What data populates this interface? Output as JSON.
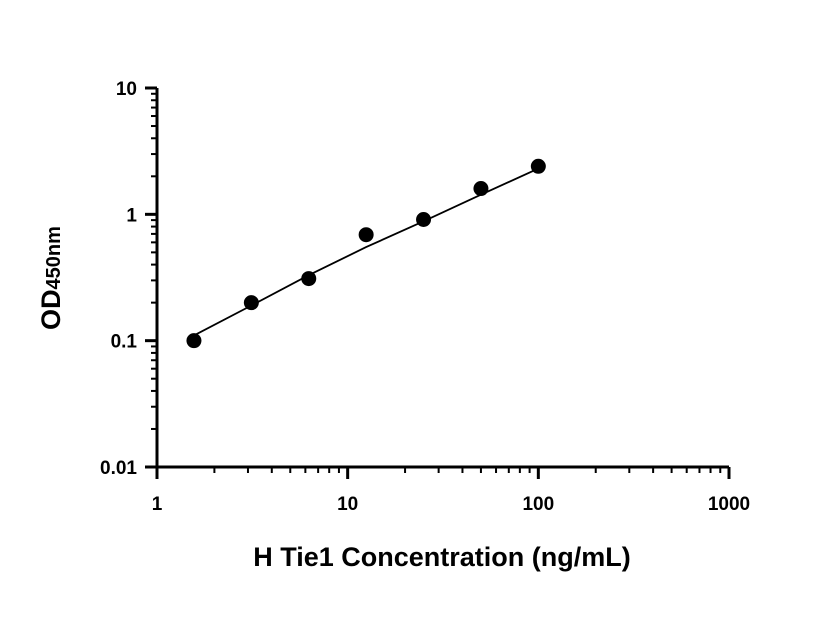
{
  "chart_data": {
    "type": "scatter",
    "title": "",
    "xlabel": "H Tie1 Concentration (ng/mL)",
    "ylabel": {
      "main": "OD",
      "subscript": "450nm"
    },
    "x_scale": "log",
    "y_scale": "log",
    "xlim": [
      1,
      1000
    ],
    "ylim": [
      0.01,
      10
    ],
    "x_ticks": [
      "1",
      "10",
      "100",
      "1000"
    ],
    "y_ticks": [
      "0.01",
      "0.1",
      "1",
      "10"
    ],
    "grid": false,
    "legend": "none",
    "series": [
      {
        "x": [
          1.5625,
          3.125,
          6.25,
          12.5,
          25,
          50,
          100
        ],
        "y": [
          0.1,
          0.2,
          0.31,
          0.69,
          0.91,
          1.6,
          2.4
        ]
      }
    ],
    "fit_curve": {
      "x": [
        1.5625,
        3.125,
        6.25,
        12.5,
        25,
        50,
        100
      ],
      "y": [
        0.11,
        0.19,
        0.33,
        0.55,
        0.88,
        1.43,
        2.3
      ]
    },
    "colors": {
      "marker": "#000000",
      "axis": "#000000",
      "curve": "#000000"
    }
  }
}
